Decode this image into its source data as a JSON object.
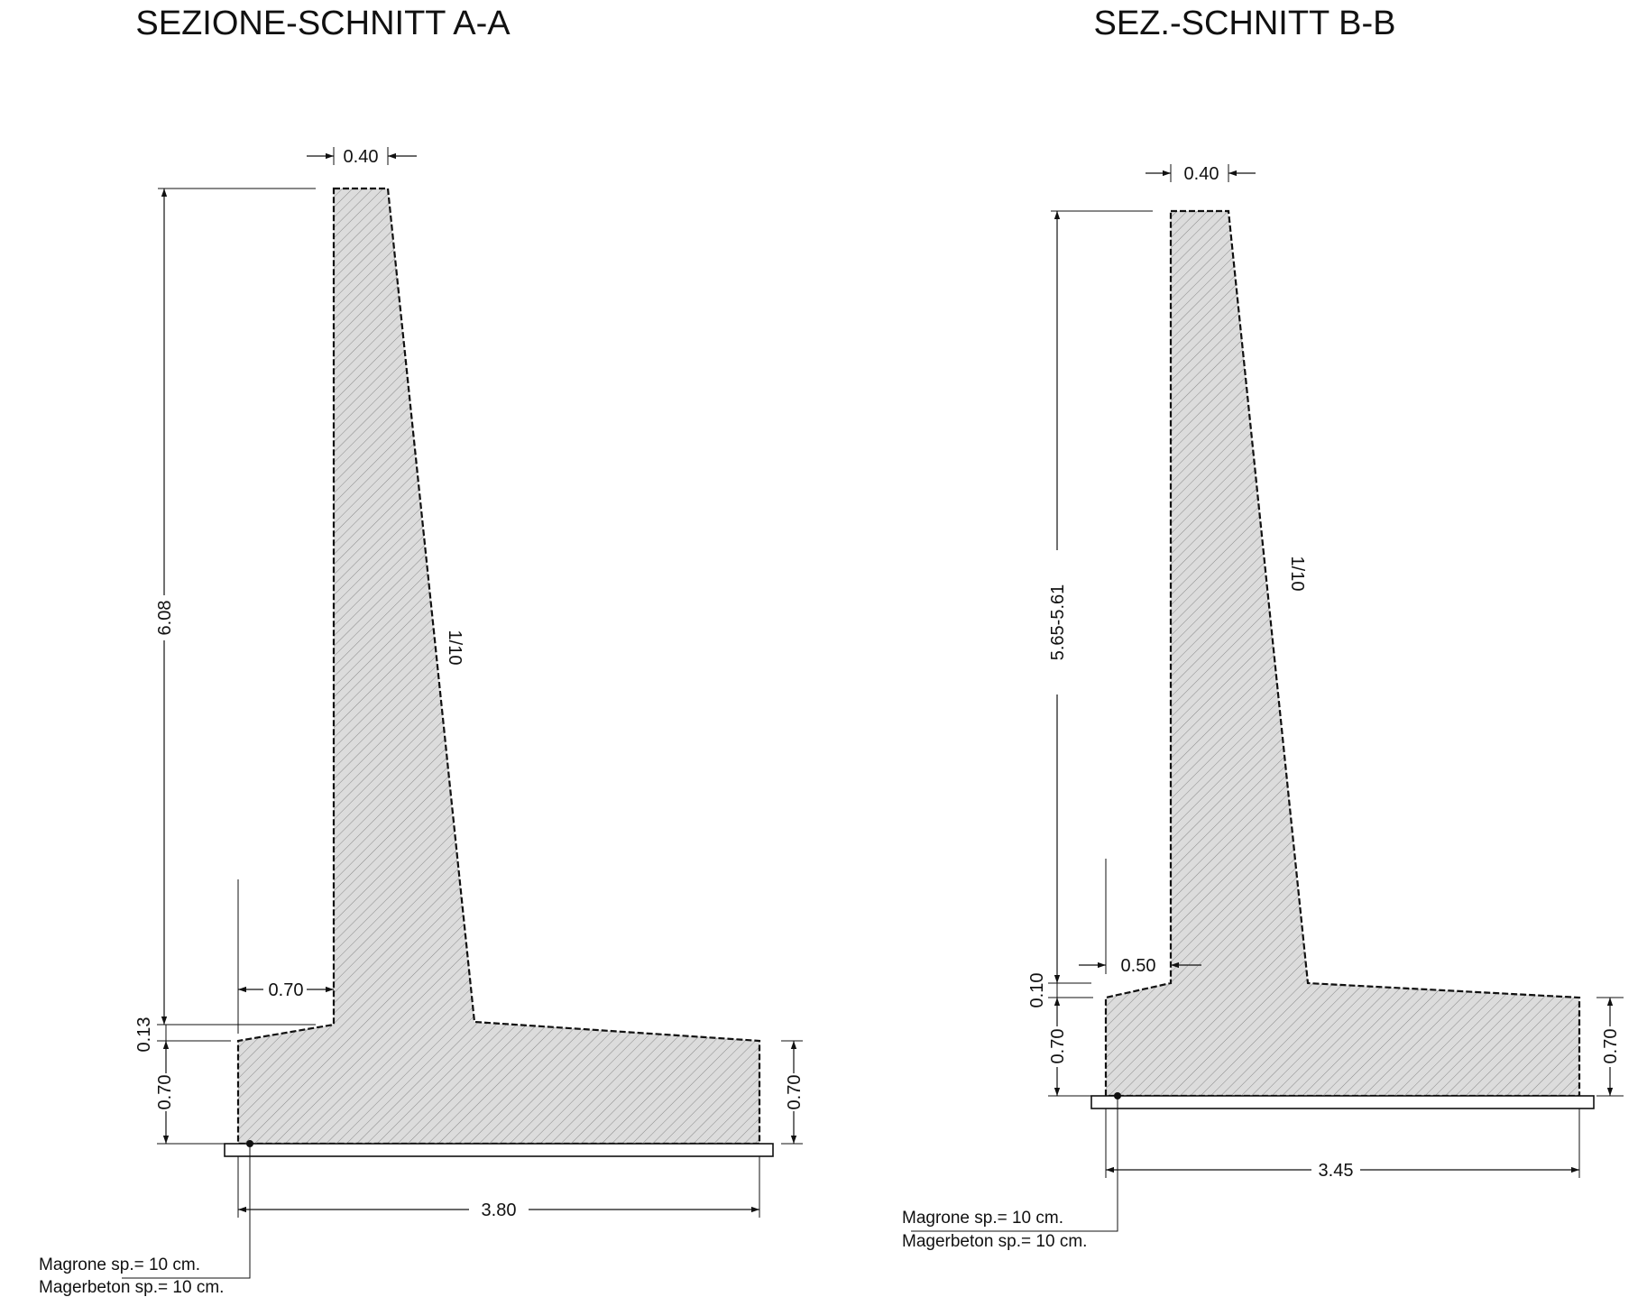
{
  "sections": [
    {
      "id": "A-A",
      "title": "SEZIONE-SCHNITT A-A",
      "dims": {
        "top_width": "0.40",
        "stem_height": "6.08",
        "slope": "1/10",
        "toe_width": "0.70",
        "toe_rise": "0.13",
        "base_left": "0.70",
        "base_right": "0.70",
        "base_width": "3.80"
      },
      "lean_concrete": {
        "line1": "Magrone sp.= 10 cm.",
        "line2": "Magerbeton sp.= 10 cm."
      }
    },
    {
      "id": "B-B",
      "title": "SEZ.-SCHNITT B-B",
      "dims": {
        "top_width": "0.40",
        "stem_height": "5.65-5.61",
        "slope": "1/10",
        "toe_width": "0.50",
        "toe_rise": "0.10",
        "base_left": "0.70",
        "base_right": "0.70",
        "base_width": "3.45"
      },
      "lean_concrete": {
        "line1": "Magrone sp.= 10 cm.",
        "line2": "Magerbeton sp.= 10 cm."
      }
    }
  ],
  "colors": {
    "concrete_fill": "#dcdcdc",
    "hatch": "#8a8a8a",
    "line": "#111111"
  }
}
